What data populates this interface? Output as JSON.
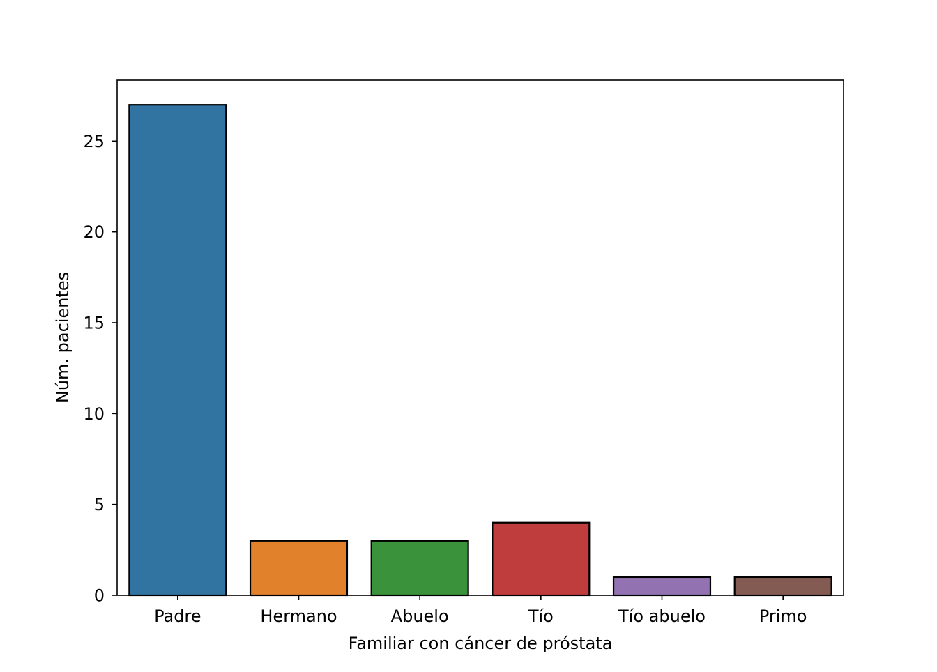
{
  "chart_data": {
    "type": "bar",
    "title": "",
    "xlabel": "Familiar con cáncer de próstata",
    "ylabel": "Núm. pacientes",
    "categories": [
      "Padre",
      "Hermano",
      "Abuelo",
      "Tío",
      "Tío abuelo",
      "Primo"
    ],
    "values": [
      27,
      3,
      3,
      4,
      1,
      1
    ],
    "colors": [
      "#3274a1",
      "#e1812c",
      "#3a923a",
      "#c03d3e",
      "#9372b2",
      "#845b53"
    ],
    "ylim": [
      0,
      28.35
    ],
    "yticks": [
      0,
      5,
      10,
      15,
      20,
      25
    ],
    "grid": false,
    "legend": "none"
  }
}
